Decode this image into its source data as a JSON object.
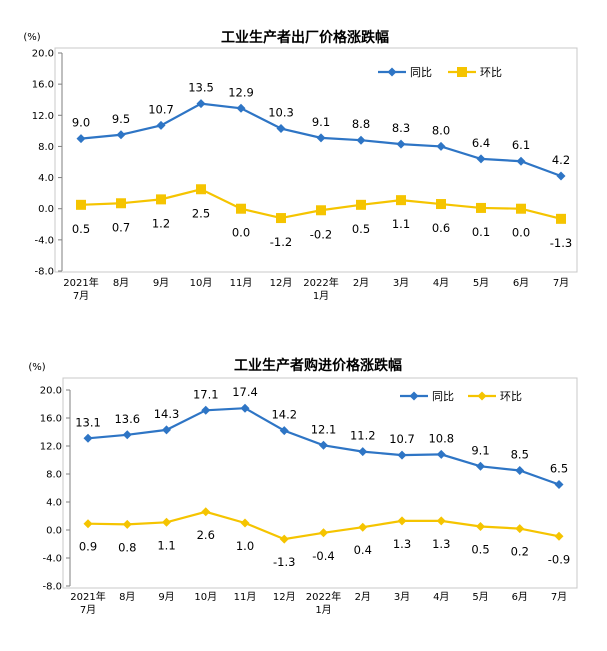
{
  "chart_data": [
    {
      "type": "line",
      "title": "工业生产者出厂价格涨跌幅",
      "unit": "(%)",
      "ylim": [
        -8.0,
        20.0
      ],
      "yticks": [
        "20.0",
        "16.0",
        "12.0",
        "8.0",
        "4.0",
        "0.0",
        "-4.0",
        "-8.0"
      ],
      "ytick_values": [
        20,
        16,
        12,
        8,
        4,
        0,
        -4,
        -8
      ],
      "categories": [
        [
          "2021年",
          "7月"
        ],
        [
          "8月"
        ],
        [
          "9月"
        ],
        [
          "10月"
        ],
        [
          "11月"
        ],
        [
          "12月"
        ],
        [
          "2022年",
          "1月"
        ],
        [
          "2月"
        ],
        [
          "3月"
        ],
        [
          "4月"
        ],
        [
          "5月"
        ],
        [
          "6月"
        ],
        [
          "7月"
        ]
      ],
      "series": [
        {
          "name": "同比",
          "color": "#2e75c5",
          "marker": "diamond",
          "values": [
            9.0,
            9.5,
            10.7,
            13.5,
            12.9,
            10.3,
            9.1,
            8.8,
            8.3,
            8.0,
            6.4,
            6.1,
            4.2
          ],
          "labels": [
            "9.0",
            "9.5",
            "10.7",
            "13.5",
            "12.9",
            "10.3",
            "9.1",
            "8.8",
            "8.3",
            "8.0",
            "6.4",
            "6.1",
            "4.2"
          ]
        },
        {
          "name": "环比",
          "color": "#f5c400",
          "marker": "square",
          "values": [
            0.5,
            0.7,
            1.2,
            2.5,
            0.0,
            -1.2,
            -0.2,
            0.5,
            1.1,
            0.6,
            0.1,
            0.0,
            -1.3
          ],
          "labels": [
            "0.5",
            "0.7",
            "1.2",
            "2.5",
            "0.0",
            "-1.2",
            "-0.2",
            "0.5",
            "1.1",
            "0.6",
            "0.1",
            "0.0",
            "-1.3"
          ]
        }
      ],
      "legend": "top-right"
    },
    {
      "type": "line",
      "title": "工业生产者购进价格涨跌幅",
      "unit": "(%)",
      "ylim": [
        -8.0,
        20.0
      ],
      "yticks": [
        "20.0",
        "16.0",
        "12.0",
        "8.0",
        "4.0",
        "0.0",
        "-4.0",
        "-8.0"
      ],
      "ytick_values": [
        20,
        16,
        12,
        8,
        4,
        0,
        -4,
        -8
      ],
      "categories": [
        [
          "2021年",
          "7月"
        ],
        [
          "8月"
        ],
        [
          "9月"
        ],
        [
          "10月"
        ],
        [
          "11月"
        ],
        [
          "12月"
        ],
        [
          "2022年",
          "1月"
        ],
        [
          "2月"
        ],
        [
          "3月"
        ],
        [
          "4月"
        ],
        [
          "5月"
        ],
        [
          "6月"
        ],
        [
          "7月"
        ]
      ],
      "series": [
        {
          "name": "同比",
          "color": "#2e75c5",
          "marker": "diamond",
          "values": [
            13.1,
            13.6,
            14.3,
            17.1,
            17.4,
            14.2,
            12.1,
            11.2,
            10.7,
            10.8,
            9.1,
            8.5,
            6.5
          ],
          "labels": [
            "13.1",
            "13.6",
            "14.3",
            "17.1",
            "17.4",
            "14.2",
            "12.1",
            "11.2",
            "10.7",
            "10.8",
            "9.1",
            "8.5",
            "6.5"
          ]
        },
        {
          "name": "环比",
          "color": "#f5c400",
          "marker": "diamond",
          "values": [
            0.9,
            0.8,
            1.1,
            2.6,
            1.0,
            -1.3,
            -0.4,
            0.4,
            1.3,
            1.3,
            0.5,
            0.2,
            -0.9
          ],
          "labels": [
            "0.9",
            "0.8",
            "1.1",
            "2.6",
            "1.0",
            "-1.3",
            "-0.4",
            "0.4",
            "1.3",
            "1.3",
            "0.5",
            "0.2",
            "-0.9"
          ]
        }
      ],
      "legend": "top-right"
    }
  ]
}
